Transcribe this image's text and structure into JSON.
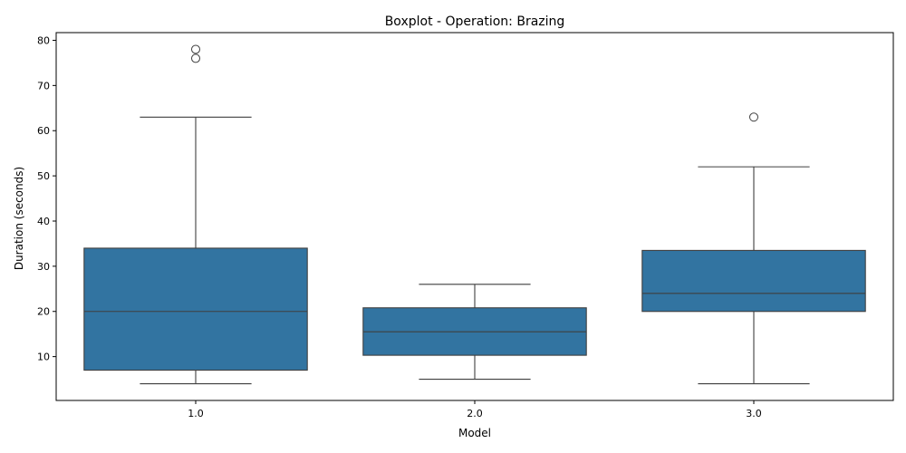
{
  "chart_data": {
    "type": "boxplot",
    "title": "Boxplot - Operation: Brazing",
    "xlabel": "Model",
    "ylabel": "Duration (seconds)",
    "categories": [
      "1.0",
      "2.0",
      "3.0"
    ],
    "boxes": [
      {
        "category": "1.0",
        "whisker_low": 4,
        "q1": 7,
        "median": 20,
        "q3": 34,
        "whisker_high": 63,
        "outliers": [
          76,
          78
        ]
      },
      {
        "category": "2.0",
        "whisker_low": 5,
        "q1": 10.3,
        "median": 15.5,
        "q3": 20.8,
        "whisker_high": 26,
        "outliers": []
      },
      {
        "category": "3.0",
        "whisker_low": 4,
        "q1": 20,
        "median": 24,
        "q3": 33.5,
        "whisker_high": 52,
        "outliers": [
          63
        ]
      }
    ],
    "ylim": [
      0.3,
      81.7
    ],
    "yticks": [
      10,
      20,
      30,
      40,
      50,
      60,
      70,
      80
    ],
    "grid": false,
    "colors": {
      "box_fill": "#3274a1",
      "line": "#3f3f3f",
      "axis": "#000000"
    }
  }
}
